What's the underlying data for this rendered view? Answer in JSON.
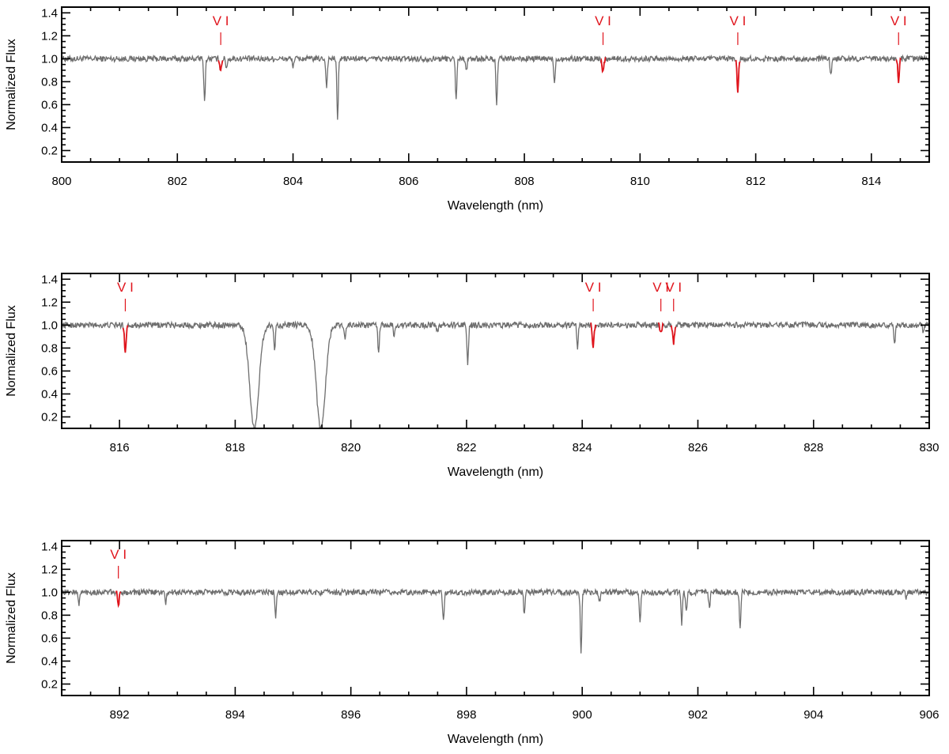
{
  "colors": {
    "spectrum": "#6e6e6e",
    "line_highlight": "#e0141c",
    "axis": "#000000"
  },
  "chart_data": [
    {
      "type": "line",
      "xlabel": "Wavelength (nm)",
      "ylabel": "Normalized Flux",
      "xlim": [
        800,
        815
      ],
      "ylim": [
        0.1,
        1.45
      ],
      "xticks": [
        "800",
        "802",
        "804",
        "806",
        "808",
        "810",
        "812",
        "814"
      ],
      "yticks": [
        "0.2",
        "0.4",
        "0.6",
        "0.8",
        "1.0",
        "1.2",
        "1.4"
      ],
      "continuum": 1.0,
      "absorption_lines": [
        {
          "x": 802.47,
          "depth": 0.37
        },
        {
          "x": 802.85,
          "depth": 0.08
        },
        {
          "x": 804.0,
          "depth": 0.06
        },
        {
          "x": 804.58,
          "depth": 0.25
        },
        {
          "x": 804.77,
          "depth": 0.52
        },
        {
          "x": 806.82,
          "depth": 0.34
        },
        {
          "x": 807.0,
          "depth": 0.1
        },
        {
          "x": 807.52,
          "depth": 0.42
        },
        {
          "x": 808.52,
          "depth": 0.2
        },
        {
          "x": 813.3,
          "depth": 0.15
        }
      ],
      "vi_lines": [
        {
          "label": "V I",
          "x": 802.75,
          "depth": 0.1
        },
        {
          "label": "V I",
          "x": 809.36,
          "depth": 0.12
        },
        {
          "label": "V I",
          "x": 811.69,
          "depth": 0.28
        },
        {
          "label": "V I",
          "x": 814.47,
          "depth": 0.19
        }
      ]
    },
    {
      "type": "line",
      "xlabel": "Wavelength (nm)",
      "ylabel": "Normalized Flux",
      "xlim": [
        815,
        830
      ],
      "ylim": [
        0.1,
        1.45
      ],
      "xticks": [
        "816",
        "818",
        "820",
        "822",
        "824",
        "826",
        "828",
        "830"
      ],
      "yticks": [
        "0.2",
        "0.4",
        "0.6",
        "0.8",
        "1.0",
        "1.2",
        "1.4"
      ],
      "continuum": 1.0,
      "absorption_lines": [
        {
          "x": 818.33,
          "depth": 0.9,
          "width": 0.11
        },
        {
          "x": 819.48,
          "depth": 0.9,
          "width": 0.11
        },
        {
          "x": 818.68,
          "depth": 0.22
        },
        {
          "x": 819.9,
          "depth": 0.12
        },
        {
          "x": 820.48,
          "depth": 0.25
        },
        {
          "x": 820.75,
          "depth": 0.1
        },
        {
          "x": 821.5,
          "depth": 0.08
        },
        {
          "x": 822.02,
          "depth": 0.36
        },
        {
          "x": 823.92,
          "depth": 0.2
        },
        {
          "x": 829.4,
          "depth": 0.17
        },
        {
          "x": 829.9,
          "depth": 0.06
        }
      ],
      "vi_lines": [
        {
          "label": "V I",
          "x": 816.1,
          "depth": 0.23
        },
        {
          "label": "V I",
          "x": 824.19,
          "depth": 0.18
        },
        {
          "label": "V I",
          "x": 825.36,
          "depth": 0.08
        },
        {
          "label": "V I",
          "x": 825.58,
          "depth": 0.15
        }
      ]
    },
    {
      "type": "line",
      "xlabel": "Wavelength (nm)",
      "ylabel": "Normalized Flux",
      "xlim": [
        891,
        906
      ],
      "ylim": [
        0.1,
        1.45
      ],
      "xticks": [
        "892",
        "894",
        "896",
        "898",
        "900",
        "902",
        "904",
        "906"
      ],
      "yticks": [
        "0.2",
        "0.4",
        "0.6",
        "0.8",
        "1.0",
        "1.2",
        "1.4"
      ],
      "continuum": 1.0,
      "absorption_lines": [
        {
          "x": 891.3,
          "depth": 0.1
        },
        {
          "x": 892.8,
          "depth": 0.1
        },
        {
          "x": 894.7,
          "depth": 0.23
        },
        {
          "x": 897.6,
          "depth": 0.26
        },
        {
          "x": 899.0,
          "depth": 0.2
        },
        {
          "x": 899.98,
          "depth": 0.51
        },
        {
          "x": 900.3,
          "depth": 0.08
        },
        {
          "x": 901.0,
          "depth": 0.25
        },
        {
          "x": 901.72,
          "depth": 0.27
        },
        {
          "x": 901.8,
          "depth": 0.18
        },
        {
          "x": 902.2,
          "depth": 0.15
        },
        {
          "x": 902.73,
          "depth": 0.3
        },
        {
          "x": 905.6,
          "depth": 0.06
        }
      ],
      "vi_lines": [
        {
          "label": "V I",
          "x": 891.98,
          "depth": 0.12
        }
      ]
    }
  ]
}
